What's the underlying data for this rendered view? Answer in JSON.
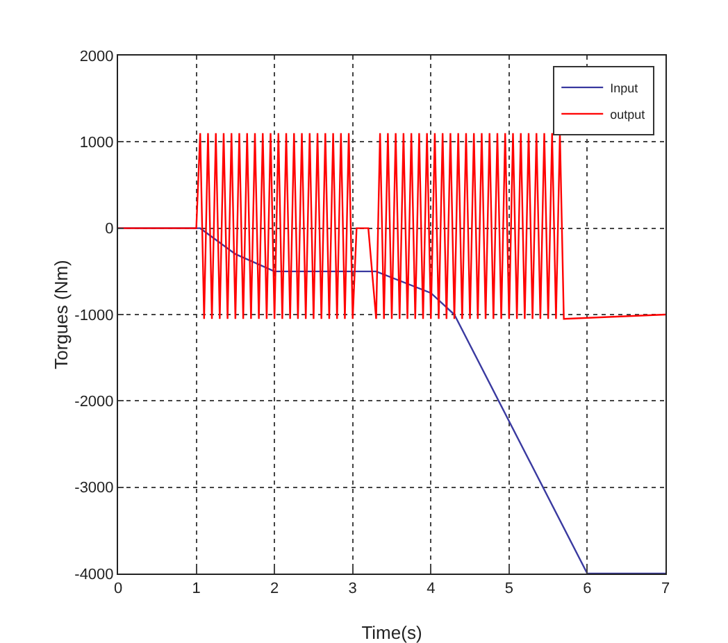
{
  "chart_data": {
    "type": "line",
    "xlabel": "Time(s)",
    "ylabel": "Torgues (Nm)",
    "xlim": [
      0,
      7
    ],
    "xticks": [
      0,
      1,
      2,
      3,
      4,
      5,
      6,
      7
    ],
    "ylim": [
      -4000,
      2000
    ],
    "yticks": [
      -4000,
      -3000,
      -2000,
      -1000,
      0,
      1000,
      2000
    ],
    "grid": true,
    "legend": "top right",
    "line_style": "solid",
    "marker": "none",
    "series": [
      {
        "name": "Input",
        "color": "#3a3aa0",
        "x": [
          0,
          1.05,
          1.5,
          2,
          3.3,
          4,
          4.3,
          6,
          7
        ],
        "values": [
          0,
          0,
          -300,
          -500,
          -500,
          -750,
          -1000,
          -4000,
          -4000
        ]
      },
      {
        "name": "output",
        "color": "#ff0000",
        "x": [
          0,
          1,
          1.05,
          1.1,
          1.15,
          1.2,
          1.25,
          1.3,
          1.35,
          1.4,
          1.45,
          1.5,
          1.55,
          1.6,
          1.65,
          1.7,
          1.75,
          1.8,
          1.85,
          1.9,
          1.95,
          2,
          2.05,
          2.1,
          2.15,
          2.2,
          2.25,
          2.3,
          2.35,
          2.4,
          2.45,
          2.5,
          2.55,
          2.6,
          2.65,
          2.7,
          2.75,
          2.8,
          2.85,
          2.9,
          2.95,
          3,
          3.05,
          3.2,
          3.3,
          3.35,
          3.4,
          3.45,
          3.5,
          3.55,
          3.6,
          3.65,
          3.7,
          3.75,
          3.8,
          3.85,
          3.9,
          3.95,
          4,
          4.05,
          4.1,
          4.15,
          4.2,
          4.25,
          4.3,
          4.35,
          4.4,
          4.45,
          4.5,
          4.55,
          4.6,
          4.65,
          4.7,
          4.75,
          4.8,
          4.85,
          4.9,
          4.95,
          5,
          5.05,
          5.1,
          5.15,
          5.2,
          5.25,
          5.3,
          5.35,
          5.4,
          5.45,
          5.5,
          5.55,
          5.6,
          5.65,
          5.7,
          7
        ],
        "values": [
          0,
          0,
          1100,
          -1050,
          1100,
          -1050,
          1100,
          -1050,
          1100,
          -1050,
          1100,
          -1050,
          1100,
          -1050,
          1100,
          -1050,
          1100,
          -1050,
          1100,
          -1050,
          1100,
          -1050,
          1100,
          -1050,
          1100,
          -1050,
          1100,
          -1050,
          1100,
          -1050,
          1100,
          -1050,
          1100,
          -1050,
          1100,
          -1050,
          1100,
          -1050,
          1100,
          -1050,
          1100,
          -1050,
          0,
          0,
          -1050,
          1100,
          -1050,
          1100,
          -1050,
          1100,
          -1050,
          1100,
          -1050,
          1100,
          -1050,
          1100,
          -1050,
          1100,
          -1050,
          1100,
          -1050,
          1100,
          -1050,
          1100,
          -1050,
          1100,
          -1050,
          1100,
          -1050,
          1100,
          -1050,
          1100,
          -1050,
          1100,
          -1050,
          1100,
          -1050,
          1100,
          -1050,
          1100,
          -1050,
          1100,
          -1050,
          1100,
          -1050,
          1100,
          -1050,
          1100,
          -1050,
          1100,
          -1050,
          1100,
          -1050,
          -1000
        ]
      }
    ]
  }
}
